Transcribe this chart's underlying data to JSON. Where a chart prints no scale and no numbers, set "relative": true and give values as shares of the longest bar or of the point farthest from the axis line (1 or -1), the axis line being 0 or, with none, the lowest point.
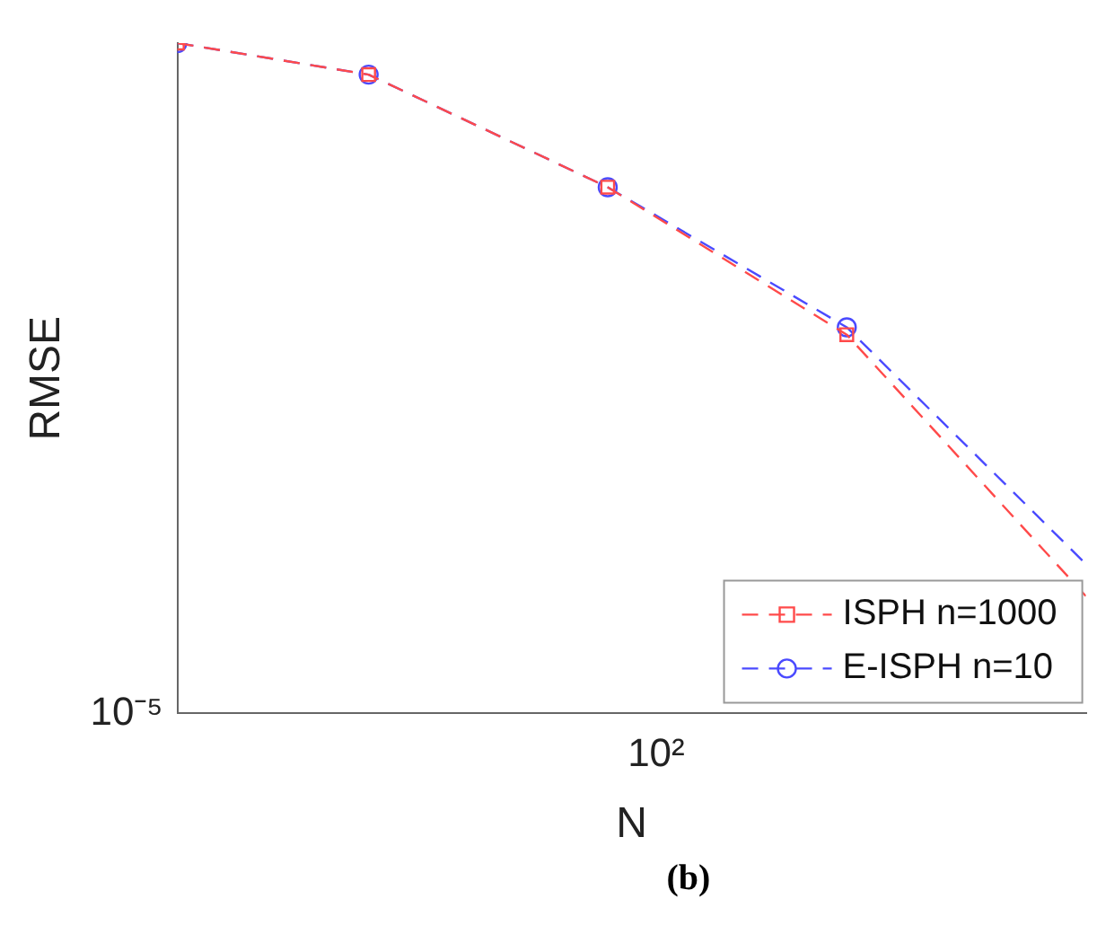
{
  "chart_data": {
    "type": "line",
    "xlabel": "N",
    "ylabel": "RMSE",
    "annotations": [
      "10²",
      "10⁻⁵",
      "(b)"
    ],
    "relative": true,
    "legend": "bottom right",
    "line_style": "dashed",
    "categories": [
      null,
      null,
      null,
      null,
      null,
      null,
      null,
      null,
      null,
      null,
      null,
      null,
      null,
      null,
      null,
      null,
      null,
      null,
      null,
      null
    ],
    "series": [
      {
        "name": "ISPH n=1000",
        "color": "#ff4a4a",
        "marker": "square",
        "values": [
          1,
          null,
          null,
          null,
          0.953,
          null,
          null,
          null,
          null,
          0.785,
          null,
          null,
          null,
          null,
          0.565,
          null,
          null,
          null,
          null,
          0.175
        ]
      },
      {
        "name": "E-ISPH n=10",
        "color": "#4a4aff",
        "marker": "circle",
        "values": [
          1,
          null,
          null,
          null,
          0.953,
          null,
          null,
          null,
          null,
          0.785,
          null,
          null,
          null,
          null,
          0.576,
          null,
          null,
          null,
          null,
          0.223
        ]
      }
    ]
  }
}
